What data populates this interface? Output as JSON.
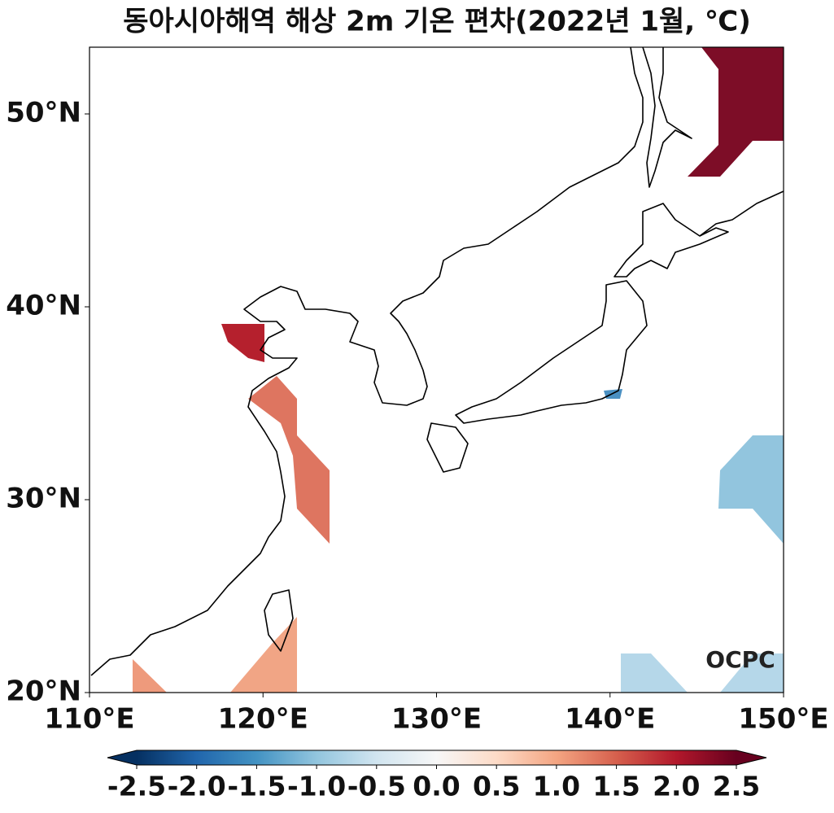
{
  "map_data": {
    "title": "동아시아해역 해상 2m 기온 편차(2022년 1월, ℃)",
    "xlim": [
      110,
      150
    ],
    "ylim": [
      20,
      53.46
    ],
    "xticks": [
      {
        "value": 110,
        "label": "110°E"
      },
      {
        "value": 120,
        "label": "120°E"
      },
      {
        "value": 130,
        "label": "130°E"
      },
      {
        "value": 140,
        "label": "140°E"
      },
      {
        "value": 150,
        "label": "150°E"
      }
    ],
    "yticks": [
      {
        "value": 20,
        "label": "20°N"
      },
      {
        "value": 30,
        "label": "30°N"
      },
      {
        "value": 40,
        "label": "40°N"
      },
      {
        "value": 50,
        "label": "50°N"
      }
    ],
    "colorbar": {
      "lim": [
        -2.5,
        2.5
      ],
      "colors": [
        "#053061",
        "#2166ac",
        "#4393c3",
        "#92c5de",
        "#d1e5f0",
        "#f7f7f7",
        "#fddbc7",
        "#f4a582",
        "#d6604d",
        "#b2182b",
        "#67001f"
      ],
      "ticks": [
        {
          "value": -2.5,
          "label": "-2.5"
        },
        {
          "value": -2,
          "label": "-2.0"
        },
        {
          "value": -1.5,
          "label": "-1.5"
        },
        {
          "value": -1,
          "label": "-1.0"
        },
        {
          "value": -0.5,
          "label": "-0.5"
        },
        {
          "value": 0,
          "label": "0.0"
        },
        {
          "value": 0.5,
          "label": "0.5"
        },
        {
          "value": 1,
          "label": "1.0"
        },
        {
          "value": 1.5,
          "label": "1.5"
        },
        {
          "value": 2,
          "label": "2.0"
        },
        {
          "value": 2.5,
          "label": "2.5"
        }
      ]
    },
    "logo": "OCPC"
  }
}
